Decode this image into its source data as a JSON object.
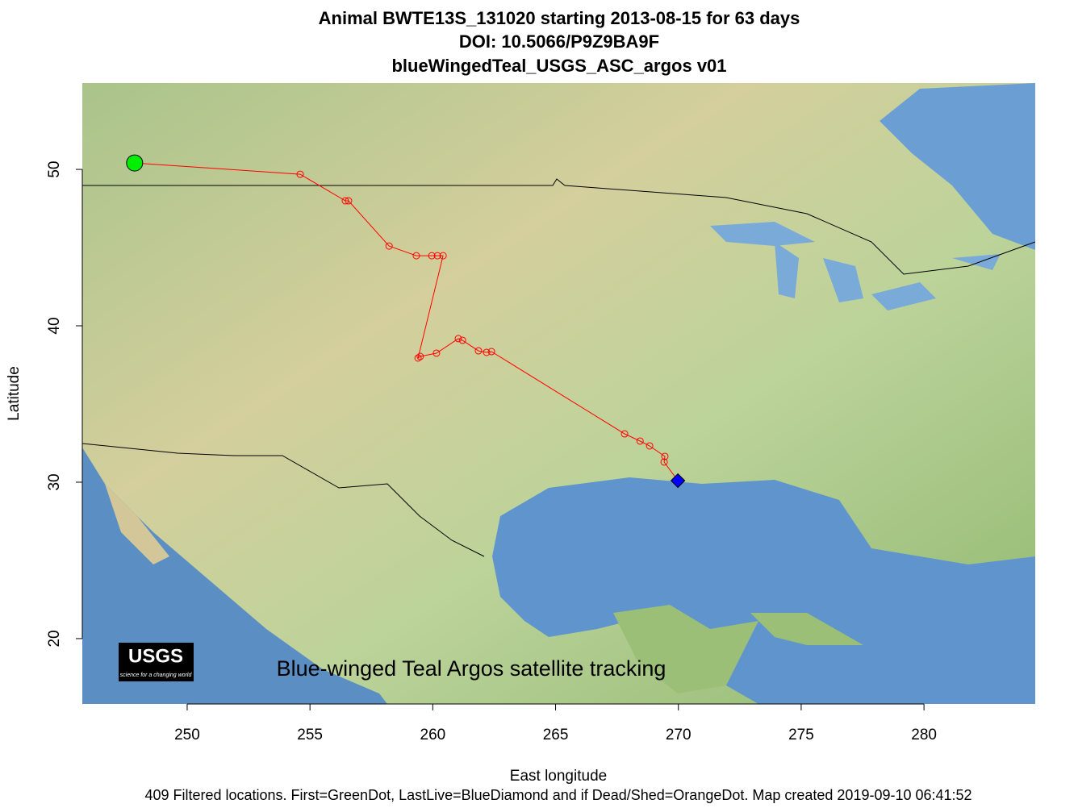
{
  "chart_data": {
    "type": "line",
    "title": [
      "Animal  BWTE13S_131020 starting  2013-08-15 for 63 days",
      "DOI: 10.5066/P9Z9BA9F",
      "blueWingedTeal_USGS_ASC_argos v01"
    ],
    "x_label": "East longitude",
    "y_label": "Latitude",
    "annotation": "Blue-winged Teal Argos satellite tracking",
    "logo": {
      "name": "USGS",
      "tagline": "science for a changing world"
    },
    "footer": "409 Filtered locations. First=GreenDot, LastLive=BlueDiamond and if Dead/Shed=OrangeDot. Map created  2019-09-10 06:41:52",
    "xlim": [
      245.73,
      284.53
    ],
    "ylim": [
      15.82,
      55.52
    ],
    "xticks": [
      250,
      255,
      260,
      265,
      270,
      275,
      280
    ],
    "yticks": [
      20,
      30,
      40,
      50
    ],
    "start_color": "#00ee00",
    "end_color": "#0000ff",
    "series": [
      {
        "color": "#ff0000",
        "x": [
          247.86,
          254.6,
          256.44,
          256.57,
          258.22,
          259.33,
          259.96,
          260.19,
          260.42,
          259.4,
          259.49,
          260.15,
          261.04,
          261.21,
          261.86,
          262.19,
          262.39,
          267.81,
          268.44,
          268.83,
          269.45,
          269.42,
          269.98
        ],
        "values": [
          50.41,
          49.69,
          47.99,
          47.99,
          45.1,
          44.48,
          44.48,
          44.48,
          44.48,
          37.94,
          38.04,
          38.25,
          39.18,
          39.07,
          38.4,
          38.3,
          38.35,
          33.09,
          32.63,
          32.32,
          31.65,
          31.29,
          30.1
        ]
      }
    ]
  }
}
